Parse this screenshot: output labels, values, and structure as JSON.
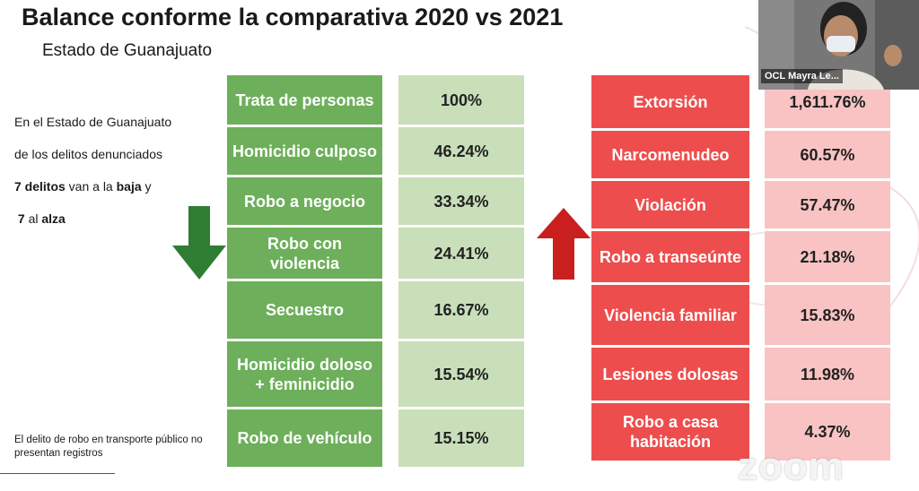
{
  "slide": {
    "title": "Balance conforme la comparativa 2020 vs 2021",
    "subtitle": "Estado de Guanajuato",
    "intro": {
      "line1": "En el Estado de Guanajuato",
      "line2": "de los delitos denunciados",
      "line3_bold": "7 delitos",
      "line3_rest": " van a la ",
      "line3_bold2": "baja",
      "line3_end": " y",
      "line4_num": "7",
      "line4_rest": " al ",
      "line4_bold": "alza"
    },
    "note": "El delito de robo en transporte público no presentan registros",
    "colors": {
      "decrease": "#6daf5a",
      "decrease_light": "#c9dfba",
      "increase": "#ee4d4d",
      "increase_light": "#f9c3c3"
    },
    "decreasing": [
      {
        "label": "Trata de personas",
        "value": "100%"
      },
      {
        "label": "Homicidio culposo",
        "value": "46.24%"
      },
      {
        "label": "Robo a negocio",
        "value": "33.34%"
      },
      {
        "label": "Robo con violencia",
        "value": "24.41%"
      },
      {
        "label": "Secuestro",
        "value": "16.67%"
      },
      {
        "label": "Homicidio doloso + feminicidio",
        "value": "15.54%"
      },
      {
        "label": "Robo de vehículo",
        "value": "15.15%"
      }
    ],
    "increasing": [
      {
        "label": "Extorsión",
        "value": "1,611.76%"
      },
      {
        "label": "Narcomenudeo",
        "value": "60.57%"
      },
      {
        "label": "Violación",
        "value": "57.47%"
      },
      {
        "label": "Robo a transeúnte",
        "value": "21.18%"
      },
      {
        "label": "Violencia familiar",
        "value": "15.83%"
      },
      {
        "label": "Lesiones dolosas",
        "value": "11.98%"
      },
      {
        "label": "Robo a casa habitación",
        "value": "4.37%"
      }
    ]
  },
  "video": {
    "participant_name": "OCL Mayra Le...",
    "watermark": "zoom"
  },
  "icons": {
    "down": "arrow-down-icon",
    "up": "arrow-up-icon"
  }
}
